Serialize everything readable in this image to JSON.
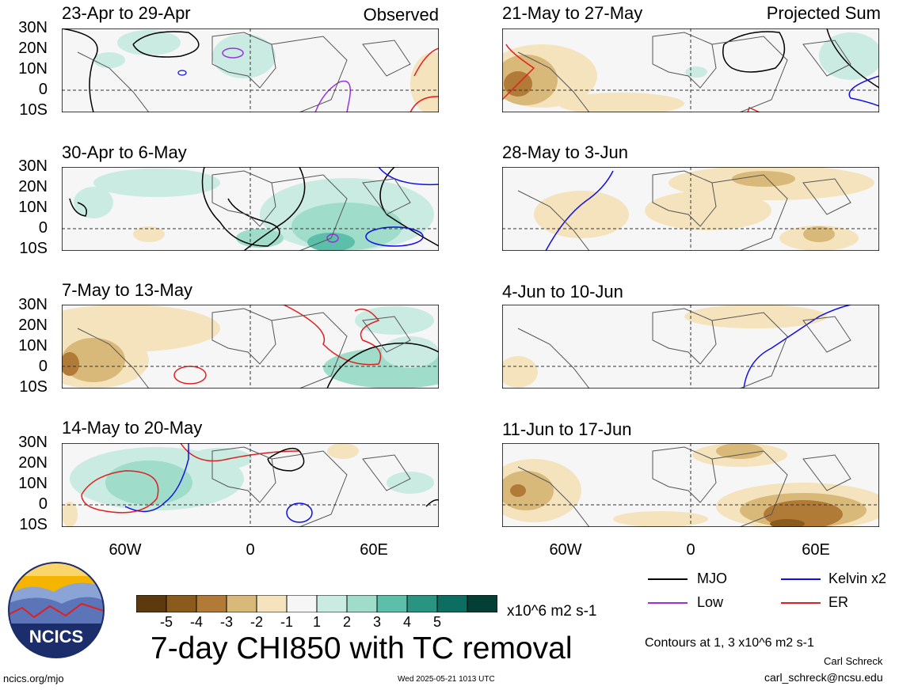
{
  "left_column": {
    "tag": "Observed",
    "panels": [
      {
        "title": "23-Apr to 29-Apr"
      },
      {
        "title": "30-Apr to 6-May"
      },
      {
        "title": "7-May to 13-May"
      },
      {
        "title": "14-May to 20-May"
      }
    ]
  },
  "right_column": {
    "tag": "Projected Sum",
    "panels": [
      {
        "title": "21-May to 27-May"
      },
      {
        "title": "28-May to 3-Jun"
      },
      {
        "title": "4-Jun to 10-Jun"
      },
      {
        "title": "11-Jun to 17-Jun"
      }
    ]
  },
  "lat_labels": [
    "30N",
    "20N",
    "10N",
    "0",
    "10S"
  ],
  "lon_labels": [
    "60W",
    "0",
    "60E"
  ],
  "colorbar": {
    "labels": [
      "-5",
      "-4",
      "-3",
      "-2",
      "-1",
      "1",
      "2",
      "3",
      "4",
      "5"
    ],
    "colors": [
      "#5c3a0e",
      "#8b5a1d",
      "#b27a37",
      "#d9b97a",
      "#f5e3bd",
      "#f6f6f6",
      "#c9ebe2",
      "#9fdcca",
      "#5cbfa9",
      "#2a9483",
      "#0b6e60",
      "#033f35"
    ],
    "units": "x10^6 m2 s-1"
  },
  "main_title": "7-day CHI850 with TC removal",
  "legend": {
    "items": [
      {
        "label": "MJO",
        "color": "#000000"
      },
      {
        "label": "Kelvin x2",
        "color": "#1010e0"
      },
      {
        "label": "Low",
        "color": "#9b30e0"
      },
      {
        "label": "ER",
        "color": "#e02020"
      }
    ],
    "contours_note": "Contours at 1, 3 x10^6 m2 s-1"
  },
  "logo_text": "NCICS",
  "footer": {
    "url": "ncics.org/mjo",
    "timestamp": "Wed 2025-05-21 1013 UTC",
    "author": "Carl Schreck",
    "email": "carl_schreck@ncsu.edu"
  }
}
